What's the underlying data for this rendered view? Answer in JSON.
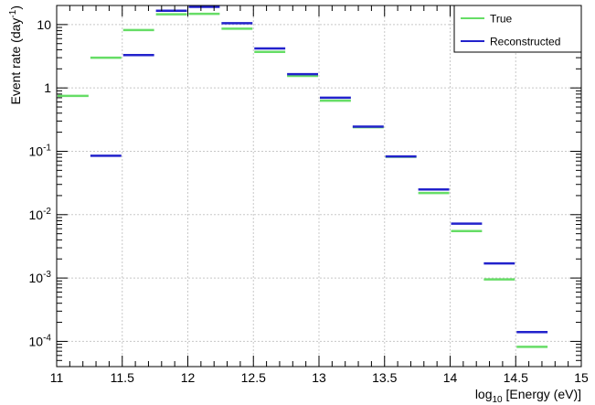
{
  "chart_data": {
    "type": "line",
    "title": "",
    "xlabel": {
      "prefix": "log",
      "subscript": "10",
      "suffix": " [Energy (eV)]"
    },
    "ylabel": {
      "main": "Event rate (day",
      "superscript": "-1",
      "close": ")"
    },
    "xlim": [
      11,
      15
    ],
    "ylim": [
      4e-05,
      20
    ],
    "y_scale": "log",
    "grid": true,
    "legend_position": "top-right",
    "x_ticks": [
      "11",
      "11.5",
      "12",
      "12.5",
      "13",
      "13.5",
      "14",
      "14.5",
      "15"
    ],
    "y_ticks": [
      {
        "value": 0.0001,
        "base": "10",
        "exp": "-4"
      },
      {
        "value": 0.001,
        "base": "10",
        "exp": "-3"
      },
      {
        "value": 0.01,
        "base": "10",
        "exp": "-2"
      },
      {
        "value": 0.1,
        "base": "10",
        "exp": "-1"
      },
      {
        "value": 1,
        "base": "1",
        "exp": ""
      },
      {
        "value": 10,
        "base": "10",
        "exp": ""
      }
    ],
    "bin_edges": [
      11,
      11.25,
      11.5,
      11.75,
      12,
      12.25,
      12.5,
      12.75,
      13,
      13.25,
      13.5,
      13.75,
      14,
      14.25,
      14.5,
      14.75
    ],
    "series": [
      {
        "name": "True",
        "color": "#66dd66",
        "values": [
          0.75,
          3.0,
          8.2,
          14.5,
          14.8,
          8.6,
          3.7,
          1.55,
          0.63,
          0.24,
          0.082,
          0.022,
          0.0055,
          0.00095,
          8.2e-05
        ]
      },
      {
        "name": "Reconstructed",
        "color": "#2222cc",
        "values": [
          null,
          0.085,
          3.3,
          16.5,
          19.0,
          10.5,
          4.2,
          1.65,
          0.7,
          0.245,
          0.083,
          0.025,
          0.0072,
          0.0017,
          0.00014
        ]
      }
    ]
  }
}
